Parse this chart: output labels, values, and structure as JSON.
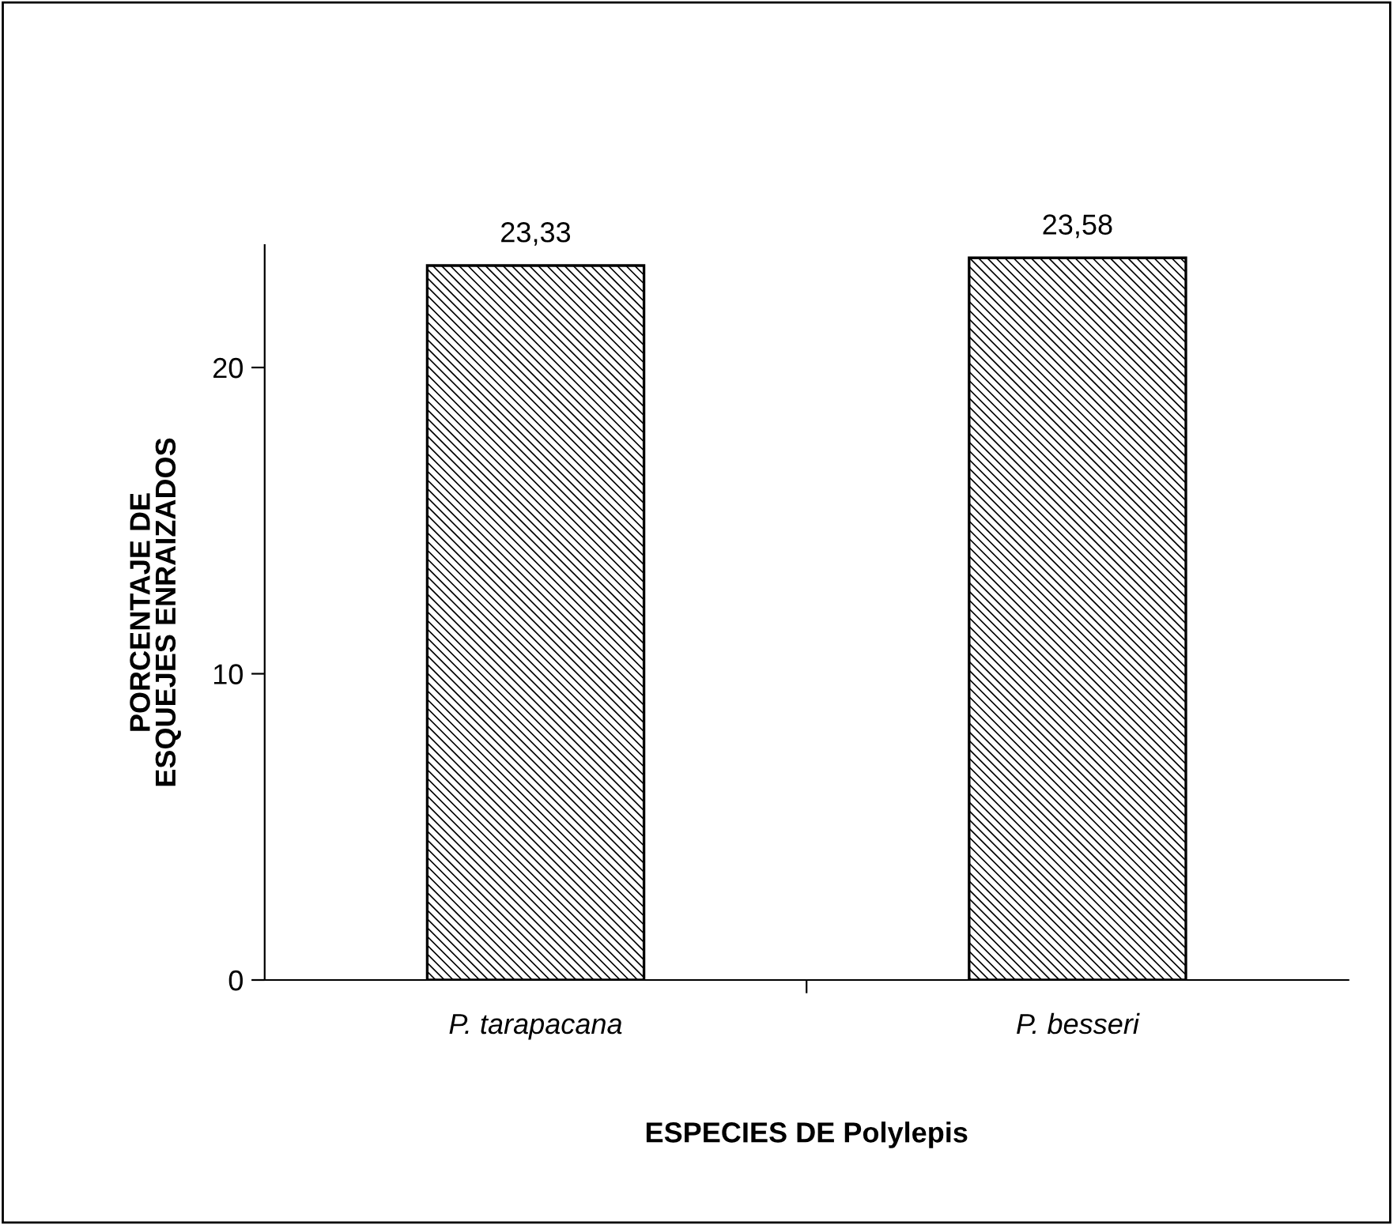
{
  "chart_data": {
    "type": "bar",
    "xlabel": "ESPECIES DE Polylepis",
    "ylabel": "PORCENTAJE DE\nESQUEJES ENRAIZADOS",
    "categories": [
      "P. tarapacana",
      "P. besseri"
    ],
    "values": [
      23.33,
      23.58
    ],
    "value_labels": [
      "23,33",
      "23,58"
    ],
    "color": "#000000",
    "ylim": [
      0,
      24
    ],
    "yticks": [
      0,
      10,
      20
    ],
    "grid": false,
    "legend": false
  }
}
